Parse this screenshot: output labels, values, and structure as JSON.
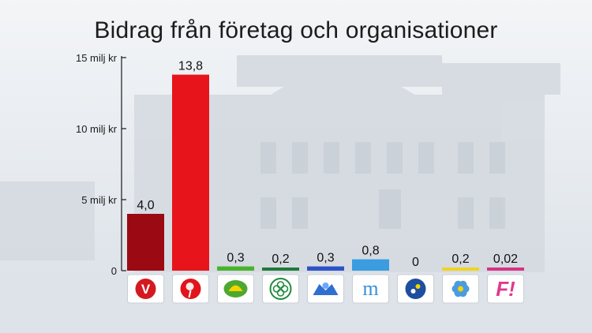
{
  "chart_data": {
    "type": "bar",
    "title": "Bidrag från företag och organisationer",
    "xlabel": "",
    "ylabel": "",
    "ylim": [
      0,
      15
    ],
    "yticks": [
      {
        "value": 0,
        "label": "0"
      },
      {
        "value": 5,
        "label": "5 milj kr"
      },
      {
        "value": 10,
        "label": "10 milj kr"
      },
      {
        "value": 15,
        "label": "15 milj kr"
      }
    ],
    "grid": false,
    "categories": [
      "V",
      "S",
      "MP",
      "C",
      "FP",
      "M",
      "KD",
      "SD",
      "F!"
    ],
    "values": [
      4.0,
      13.8,
      0.3,
      0.2,
      0.3,
      0.8,
      0,
      0.2,
      0.02
    ],
    "data_labels": [
      "4,0",
      "13,8",
      "0,3",
      "0,2",
      "0,3",
      "0,8",
      "0",
      "0,2",
      "0,02"
    ],
    "colors": [
      "#9b0a12",
      "#e8141b",
      "#49b32c",
      "#1f7a3a",
      "#2d52c8",
      "#3c9ce0",
      "#1f4fa0",
      "#f2d320",
      "#d63384"
    ]
  },
  "party_logos": [
    {
      "icon": "v-party-logo-icon",
      "letter": "V",
      "bg": "#d41a20"
    },
    {
      "icon": "rose-logo-icon",
      "bg": "#e2141b"
    },
    {
      "icon": "sunflower-logo-icon",
      "bg": "#4da82f"
    },
    {
      "icon": "clover-logo-icon",
      "bg": "#1f8a3c"
    },
    {
      "icon": "blue-flower-logo-icon",
      "bg": "#2f6fd0"
    },
    {
      "icon": "m-logo-icon",
      "letter": "m",
      "bg": "#3b8fd6"
    },
    {
      "icon": "dove-flower-logo-icon",
      "bg": "#1d4ea0"
    },
    {
      "icon": "blue-anemone-logo-icon",
      "bg": "#4a9be0"
    },
    {
      "icon": "f-logo-icon",
      "letter": "F!",
      "bg": "#e0388f"
    }
  ]
}
